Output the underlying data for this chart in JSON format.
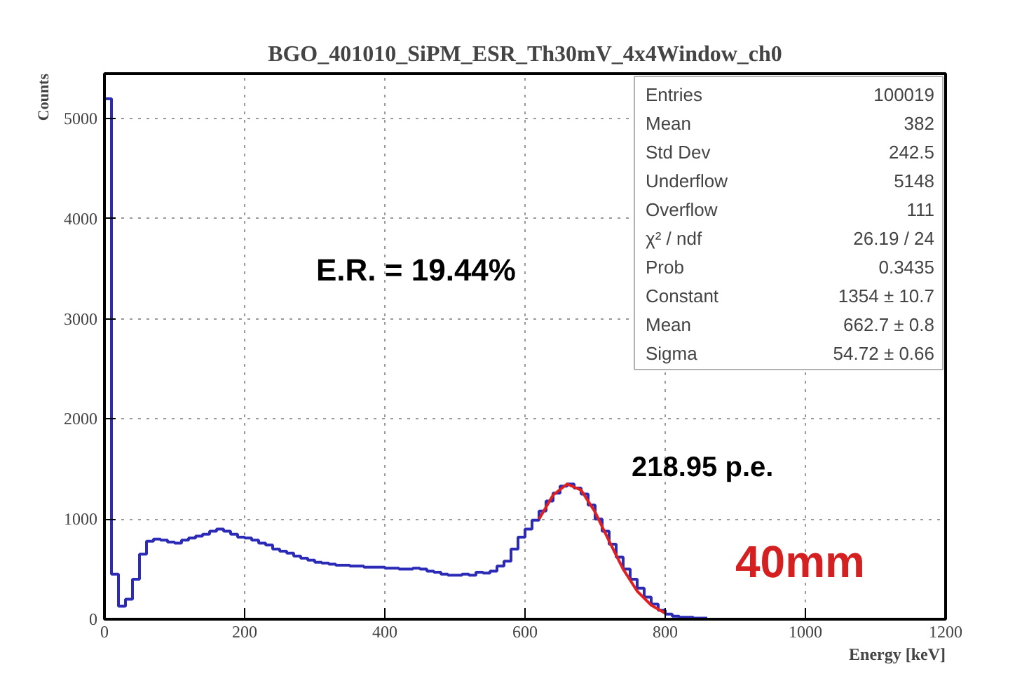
{
  "chart_data": {
    "type": "histogram",
    "title": "BGO_401010_SiPM_ESR_Th30mV_4x4Window_ch0",
    "xlabel": "Energy [keV]",
    "ylabel": "Counts",
    "xlim": [
      0,
      1200
    ],
    "ylim": [
      0,
      5450
    ],
    "xticks": [
      0,
      200,
      400,
      600,
      800,
      1000,
      1200
    ],
    "yticks": [
      0,
      1000,
      2000,
      3000,
      4000,
      5000
    ],
    "grid": true,
    "series": [
      {
        "type": "histogram",
        "color": "#2b2bb8",
        "bins": [
          0,
          10,
          20,
          30,
          40,
          50,
          60,
          70,
          80,
          90,
          100,
          110,
          120,
          130,
          140,
          150,
          160,
          170,
          180,
          190,
          200,
          210,
          220,
          230,
          240,
          250,
          260,
          270,
          280,
          290,
          300,
          310,
          320,
          330,
          340,
          350,
          360,
          370,
          380,
          390,
          400,
          410,
          420,
          430,
          440,
          450,
          460,
          470,
          480,
          490,
          500,
          510,
          520,
          530,
          540,
          550,
          560,
          570,
          580,
          590,
          600,
          610,
          620,
          630,
          640,
          650,
          660,
          670,
          680,
          690,
          700,
          710,
          720,
          730,
          740,
          750,
          760,
          770,
          780,
          790,
          800,
          810,
          820,
          830,
          840,
          850,
          860
        ],
        "values": [
          5200,
          450,
          130,
          200,
          400,
          650,
          780,
          800,
          790,
          770,
          760,
          790,
          810,
          830,
          850,
          880,
          900,
          880,
          850,
          820,
          810,
          790,
          760,
          740,
          700,
          680,
          660,
          630,
          610,
          590,
          570,
          560,
          550,
          540,
          540,
          530,
          530,
          520,
          520,
          520,
          510,
          510,
          500,
          500,
          510,
          500,
          480,
          470,
          450,
          440,
          440,
          450,
          440,
          470,
          460,
          480,
          530,
          580,
          700,
          820,
          900,
          990,
          1080,
          1180,
          1260,
          1330,
          1350,
          1310,
          1250,
          1140,
          1000,
          880,
          750,
          620,
          500,
          400,
          310,
          220,
          150,
          90,
          50,
          30,
          20,
          20,
          10,
          10
        ]
      },
      {
        "type": "line",
        "color": "#e02020",
        "x": [
          620,
          640,
          660,
          680,
          700,
          720,
          740,
          760,
          780,
          800
        ],
        "values": [
          1000,
          1240,
          1350,
          1290,
          1070,
          780,
          500,
          280,
          140,
          60
        ]
      }
    ],
    "annotations": [
      "E.R. = 19.44%",
      "218.95 p.e.",
      "40mm",
      "Entries",
      "100019",
      "Mean",
      "382",
      "Std Dev",
      "242.5",
      "Underflow",
      "5148",
      "Overflow",
      "111",
      "χ² / ndf",
      "26.19 / 24",
      "Prob",
      "0.3435",
      "Constant",
      "1354 ± 10.7",
      "Mean",
      "662.7 ± 0.8",
      "Sigma",
      "54.72 ± 0.66"
    ]
  }
}
